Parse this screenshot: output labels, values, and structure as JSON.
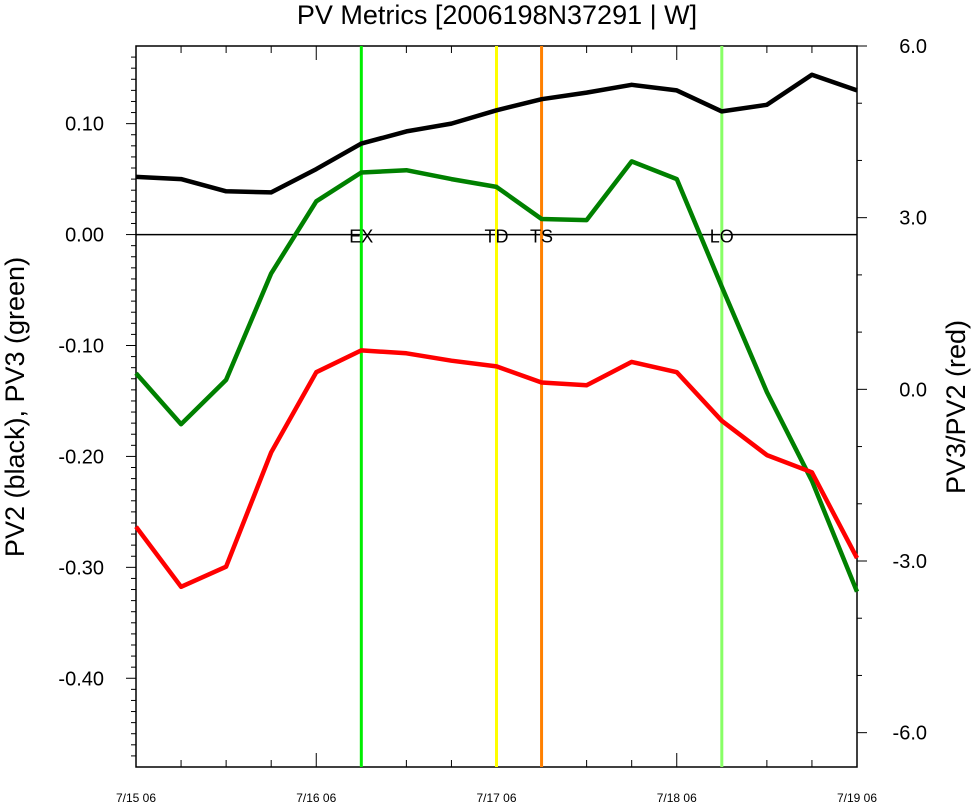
{
  "chart_data": {
    "type": "line",
    "title": "PV Metrics [2006198N37291 | W]",
    "left_ylabel": "PV2 (black), PV3 (green)",
    "right_ylabel": "PV3/PV2 (red)",
    "x_range": [
      0,
      16
    ],
    "x_ticks": [
      {
        "x": 0,
        "label": "7/15 06"
      },
      {
        "x": 4,
        "label": "7/16 06"
      },
      {
        "x": 8,
        "label": "7/17 06"
      },
      {
        "x": 12,
        "label": "7/18 06"
      },
      {
        "x": 16,
        "label": "7/19 06"
      }
    ],
    "left_ylim": [
      -0.48,
      0.17
    ],
    "left_ticks": [
      {
        "v": 0.1,
        "label": "0.10"
      },
      {
        "v": 0.0,
        "label": "0.00"
      },
      {
        "v": -0.1,
        "label": "-0.10"
      },
      {
        "v": -0.2,
        "label": "-0.20"
      },
      {
        "v": -0.3,
        "label": "-0.30"
      },
      {
        "v": -0.4,
        "label": "-0.40"
      }
    ],
    "right_ylim": [
      -6.6,
      6.0
    ],
    "right_ticks": [
      {
        "v": 6.0,
        "label": "6.0"
      },
      {
        "v": 3.0,
        "label": "3.0"
      },
      {
        "v": 0.0,
        "label": "0.0"
      },
      {
        "v": -3.0,
        "label": "-3.0"
      },
      {
        "v": -6.0,
        "label": "-6.0"
      }
    ],
    "zero_line": 0.0,
    "series": [
      {
        "axis": "left",
        "color": "#000000",
        "x": [
          0,
          1,
          2,
          3,
          4,
          5,
          6,
          7,
          8,
          9,
          10,
          11,
          12,
          13,
          14,
          15,
          16
        ],
        "values": [
          0.052,
          0.05,
          0.039,
          0.038,
          0.059,
          0.082,
          0.093,
          0.1,
          0.112,
          0.122,
          0.128,
          0.135,
          0.13,
          0.111,
          0.117,
          0.144,
          0.13
        ]
      },
      {
        "axis": "left",
        "color": "#008000",
        "x": [
          0,
          1,
          2,
          3,
          4,
          5,
          6,
          7,
          8,
          9,
          10,
          11,
          12,
          13,
          14,
          15,
          16
        ],
        "values": [
          -0.125,
          -0.171,
          -0.131,
          -0.035,
          0.03,
          0.056,
          0.058,
          0.05,
          0.043,
          0.014,
          0.013,
          0.066,
          0.05,
          -0.047,
          -0.142,
          -0.222,
          -0.322
        ]
      },
      {
        "axis": "right",
        "color": "#ff0000",
        "x": [
          0,
          1,
          2,
          3,
          4,
          5,
          6,
          7,
          8,
          9,
          10,
          11,
          12,
          13,
          14,
          15,
          16
        ],
        "values": [
          -2.4,
          -3.45,
          -3.1,
          -1.1,
          0.3,
          0.68,
          0.63,
          0.5,
          0.4,
          0.12,
          0.07,
          0.48,
          0.3,
          -0.55,
          -1.15,
          -1.45,
          -2.95
        ]
      }
    ],
    "event_lines": [
      {
        "x": 5,
        "label": "EX",
        "color": "#00ee00"
      },
      {
        "x": 8,
        "label": "TD",
        "color": "#ffff00"
      },
      {
        "x": 9,
        "label": "TS",
        "color": "#ff8000"
      },
      {
        "x": 13,
        "label": "LO",
        "color": "#88ff66"
      }
    ]
  }
}
